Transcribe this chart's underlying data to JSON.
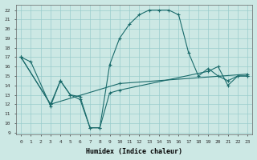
{
  "xlabel": "Humidex (Indice chaleur)",
  "bg_color": "#cce8e4",
  "grid_color": "#99cccc",
  "line_color": "#1a6b6b",
  "xlim": [
    -0.5,
    23.5
  ],
  "ylim": [
    8.8,
    22.6
  ],
  "xticks": [
    0,
    1,
    2,
    3,
    4,
    5,
    6,
    7,
    8,
    9,
    10,
    11,
    12,
    13,
    14,
    15,
    16,
    17,
    18,
    19,
    20,
    21,
    22,
    23
  ],
  "yticks": [
    9,
    10,
    11,
    12,
    13,
    14,
    15,
    16,
    17,
    18,
    19,
    20,
    21,
    22
  ],
  "line1_x": [
    0,
    1,
    3,
    4,
    5,
    6,
    7,
    8,
    9,
    10,
    11,
    12,
    13,
    14,
    15,
    16,
    17,
    18,
    19,
    20,
    21,
    22,
    23
  ],
  "line1_y": [
    17.0,
    16.5,
    11.8,
    14.5,
    13.0,
    12.5,
    9.5,
    9.5,
    16.2,
    19.0,
    20.5,
    21.5,
    22.0,
    22.0,
    22.0,
    21.5,
    17.5,
    15.0,
    15.8,
    15.0,
    14.5,
    15.0,
    15.0
  ],
  "line2_x": [
    0,
    3,
    10,
    23
  ],
  "line2_y": [
    17.0,
    12.0,
    14.2,
    15.2
  ],
  "line3_x": [
    0,
    3,
    4,
    5,
    6,
    7,
    8,
    9,
    10,
    19,
    20,
    21,
    22,
    23
  ],
  "line3_y": [
    17.0,
    12.0,
    14.5,
    13.0,
    12.8,
    9.5,
    9.5,
    13.2,
    13.5,
    15.5,
    16.0,
    14.0,
    15.0,
    15.0
  ]
}
